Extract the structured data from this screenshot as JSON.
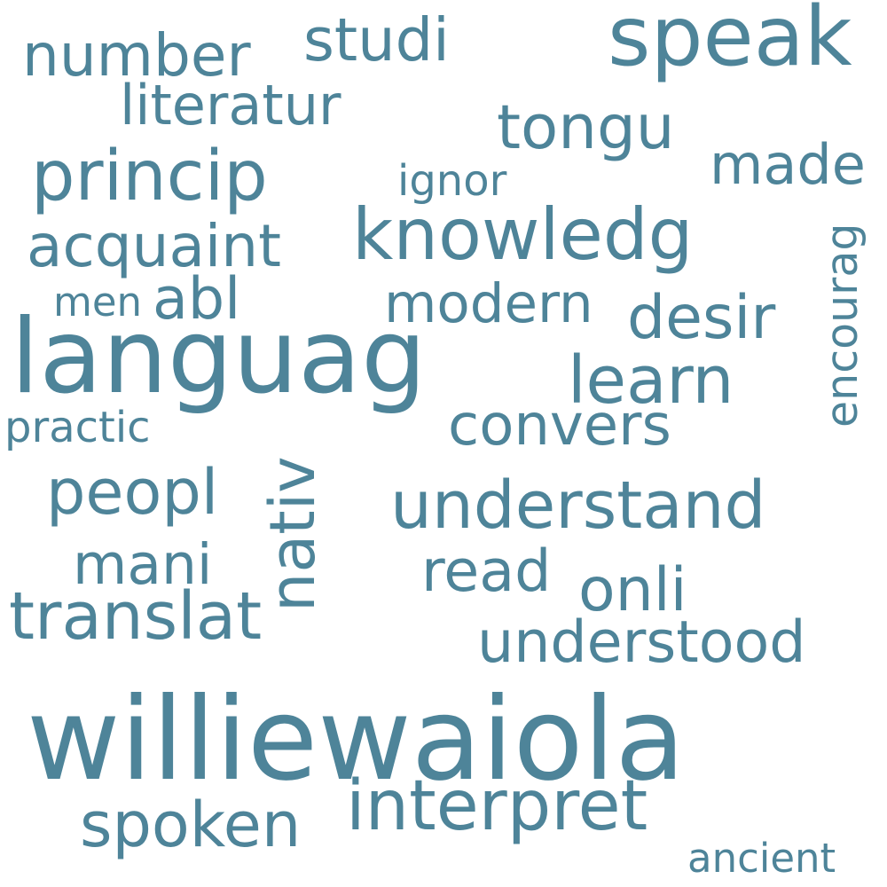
{
  "wordcloud": {
    "color": "#4E8499",
    "background": "#FFFFFF",
    "words": {
      "williewaiola": "williewaiola",
      "languag": "languag",
      "speak": "speak",
      "princip": "princip",
      "knowledg": "knowledg",
      "understand": "understand",
      "translat": "translat",
      "interpret": "interpret",
      "understood": "understood",
      "spoken": "spoken",
      "convers": "convers",
      "learn": "learn",
      "tongu": "tongu",
      "studi": "studi",
      "number": "number",
      "literatur": "literatur",
      "acquaint": "acquaint",
      "peopl": "peopl",
      "nativ": "nativ",
      "desir": "desir",
      "modern": "modern",
      "made": "made",
      "abl": "abl",
      "mani": "mani",
      "read": "read",
      "onli": "onli",
      "ignor": "ignor",
      "encourag": "encourag",
      "men": "men",
      "practic": "practic",
      "ancient": "ancient"
    }
  }
}
